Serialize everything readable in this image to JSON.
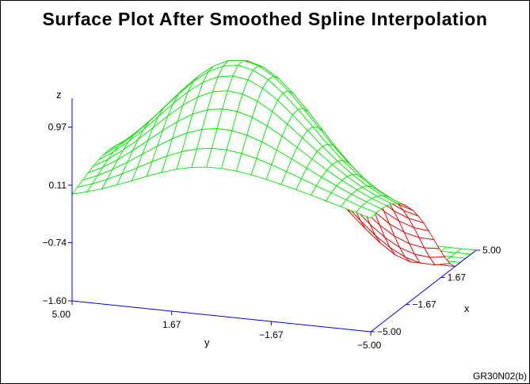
{
  "chart_data": {
    "type": "surface",
    "title": "Surface Plot After Smoothed Spline Interpolation",
    "xlabel": "x",
    "ylabel": "y",
    "zlabel": "z",
    "x_range": [
      -5.0,
      5.0
    ],
    "y_range": [
      -5.0,
      5.0
    ],
    "z_range": [
      -1.6,
      1.83
    ],
    "x_ticks": [
      "5.00",
      "1.67",
      "−1.67",
      "−5.00"
    ],
    "y_ticks": [
      "5.00",
      "1.67",
      "−1.67",
      "−5.00"
    ],
    "z_ticks": [
      "−1.60",
      "−0.74",
      "0.11",
      "0.97"
    ],
    "z_tick_values": [
      -1.6,
      -0.74,
      0.11,
      0.97
    ],
    "grid_size": 21,
    "surface_z": "approx z = 1.95*exp(-((x-1.5)^2+(y-0.5)^2)/12) - 1.7*exp(-((x+4)^2+(y+4)^2)/16) + 0.25*exp(-((x-4.5)^2+(y+3.5)^2)/8) - 1.55 shape (peak ~1.8 near center, low ~ -1.6 at near corner)",
    "colors": {
      "surface_top": "#00ee00",
      "surface_under": "#e80000",
      "axes": "#0000ee"
    }
  },
  "figure_id": "GR30N02(b)"
}
